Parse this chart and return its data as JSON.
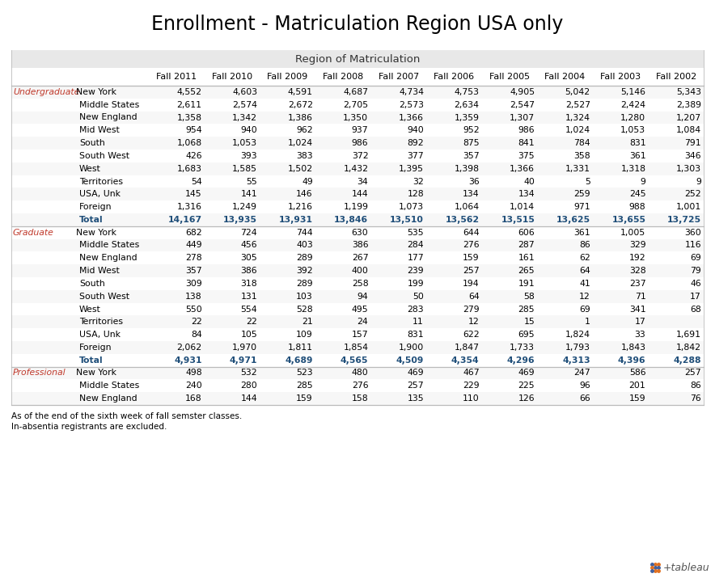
{
  "title": "Enrollment - Matriculation Region USA only",
  "subtitle": "Region of Matriculation",
  "col_header": [
    "Fall 2011",
    "Fall 2010",
    "Fall 2009",
    "Fall 2008",
    "Fall 2007",
    "Fall 2006",
    "Fall 2005",
    "Fall 2004",
    "Fall 2003",
    "Fall 2002"
  ],
  "footnote1": "As of the end of the sixth week of fall semster classes.",
  "footnote2": "In-absentia registrants are excluded.",
  "rows": [
    {
      "group": "Undergraduate",
      "region": "New York",
      "bold": false,
      "values": [
        "4,552",
        "4,603",
        "4,591",
        "4,687",
        "4,734",
        "4,753",
        "4,905",
        "5,042",
        "5,146",
        "5,343"
      ]
    },
    {
      "group": "",
      "region": "Middle States",
      "bold": false,
      "values": [
        "2,611",
        "2,574",
        "2,672",
        "2,705",
        "2,573",
        "2,634",
        "2,547",
        "2,527",
        "2,424",
        "2,389"
      ]
    },
    {
      "group": "",
      "region": "New England",
      "bold": false,
      "values": [
        "1,358",
        "1,342",
        "1,386",
        "1,350",
        "1,366",
        "1,359",
        "1,307",
        "1,324",
        "1,280",
        "1,207"
      ]
    },
    {
      "group": "",
      "region": "Mid West",
      "bold": false,
      "values": [
        "954",
        "940",
        "962",
        "937",
        "940",
        "952",
        "986",
        "1,024",
        "1,053",
        "1,084"
      ]
    },
    {
      "group": "",
      "region": "South",
      "bold": false,
      "values": [
        "1,068",
        "1,053",
        "1,024",
        "986",
        "892",
        "875",
        "841",
        "784",
        "831",
        "791"
      ]
    },
    {
      "group": "",
      "region": "South West",
      "bold": false,
      "values": [
        "426",
        "393",
        "383",
        "372",
        "377",
        "357",
        "375",
        "358",
        "361",
        "346"
      ]
    },
    {
      "group": "",
      "region": "West",
      "bold": false,
      "values": [
        "1,683",
        "1,585",
        "1,502",
        "1,432",
        "1,395",
        "1,398",
        "1,366",
        "1,331",
        "1,318",
        "1,303"
      ]
    },
    {
      "group": "",
      "region": "Territories",
      "bold": false,
      "values": [
        "54",
        "55",
        "49",
        "34",
        "32",
        "36",
        "40",
        "5",
        "9",
        "9"
      ]
    },
    {
      "group": "",
      "region": "USA, Unk",
      "bold": false,
      "values": [
        "145",
        "141",
        "146",
        "144",
        "128",
        "134",
        "134",
        "259",
        "245",
        "252"
      ]
    },
    {
      "group": "",
      "region": "Foreign",
      "bold": false,
      "values": [
        "1,316",
        "1,249",
        "1,216",
        "1,199",
        "1,073",
        "1,064",
        "1,014",
        "971",
        "988",
        "1,001"
      ]
    },
    {
      "group": "",
      "region": "Total",
      "bold": true,
      "values": [
        "14,167",
        "13,935",
        "13,931",
        "13,846",
        "13,510",
        "13,562",
        "13,515",
        "13,625",
        "13,655",
        "13,725"
      ]
    },
    {
      "group": "Graduate",
      "region": "New York",
      "bold": false,
      "values": [
        "682",
        "724",
        "744",
        "630",
        "535",
        "644",
        "606",
        "361",
        "1,005",
        "360"
      ]
    },
    {
      "group": "",
      "region": "Middle States",
      "bold": false,
      "values": [
        "449",
        "456",
        "403",
        "386",
        "284",
        "276",
        "287",
        "86",
        "329",
        "116"
      ]
    },
    {
      "group": "",
      "region": "New England",
      "bold": false,
      "values": [
        "278",
        "305",
        "289",
        "267",
        "177",
        "159",
        "161",
        "62",
        "192",
        "69"
      ]
    },
    {
      "group": "",
      "region": "Mid West",
      "bold": false,
      "values": [
        "357",
        "386",
        "392",
        "400",
        "239",
        "257",
        "265",
        "64",
        "328",
        "79"
      ]
    },
    {
      "group": "",
      "region": "South",
      "bold": false,
      "values": [
        "309",
        "318",
        "289",
        "258",
        "199",
        "194",
        "191",
        "41",
        "237",
        "46"
      ]
    },
    {
      "group": "",
      "region": "South West",
      "bold": false,
      "values": [
        "138",
        "131",
        "103",
        "94",
        "50",
        "64",
        "58",
        "12",
        "71",
        "17"
      ]
    },
    {
      "group": "",
      "region": "West",
      "bold": false,
      "values": [
        "550",
        "554",
        "528",
        "495",
        "283",
        "279",
        "285",
        "69",
        "341",
        "68"
      ]
    },
    {
      "group": "",
      "region": "Territories",
      "bold": false,
      "values": [
        "22",
        "22",
        "21",
        "24",
        "11",
        "12",
        "15",
        "1",
        "17",
        ""
      ]
    },
    {
      "group": "",
      "region": "USA, Unk",
      "bold": false,
      "values": [
        "84",
        "105",
        "109",
        "157",
        "831",
        "622",
        "695",
        "1,824",
        "33",
        "1,691"
      ]
    },
    {
      "group": "",
      "region": "Foreign",
      "bold": false,
      "values": [
        "2,062",
        "1,970",
        "1,811",
        "1,854",
        "1,900",
        "1,847",
        "1,733",
        "1,793",
        "1,843",
        "1,842"
      ]
    },
    {
      "group": "",
      "region": "Total",
      "bold": true,
      "values": [
        "4,931",
        "4,971",
        "4,689",
        "4,565",
        "4,509",
        "4,354",
        "4,296",
        "4,313",
        "4,396",
        "4,288"
      ]
    },
    {
      "group": "Professional",
      "region": "New York",
      "bold": false,
      "values": [
        "498",
        "532",
        "523",
        "480",
        "469",
        "467",
        "469",
        "247",
        "586",
        "257"
      ]
    },
    {
      "group": "",
      "region": "Middle States",
      "bold": false,
      "values": [
        "240",
        "280",
        "285",
        "276",
        "257",
        "229",
        "225",
        "96",
        "201",
        "86"
      ]
    },
    {
      "group": "",
      "region": "New England",
      "bold": false,
      "values": [
        "168",
        "144",
        "159",
        "158",
        "135",
        "110",
        "126",
        "66",
        "159",
        "76"
      ]
    }
  ],
  "subtitle_bg": "#e8e8e8",
  "border_color": "#bbbbbb",
  "total_color": "#1f4e79",
  "group_label_color": "#c0392b",
  "normal_color": "#000000",
  "fig_bg": "#ffffff"
}
